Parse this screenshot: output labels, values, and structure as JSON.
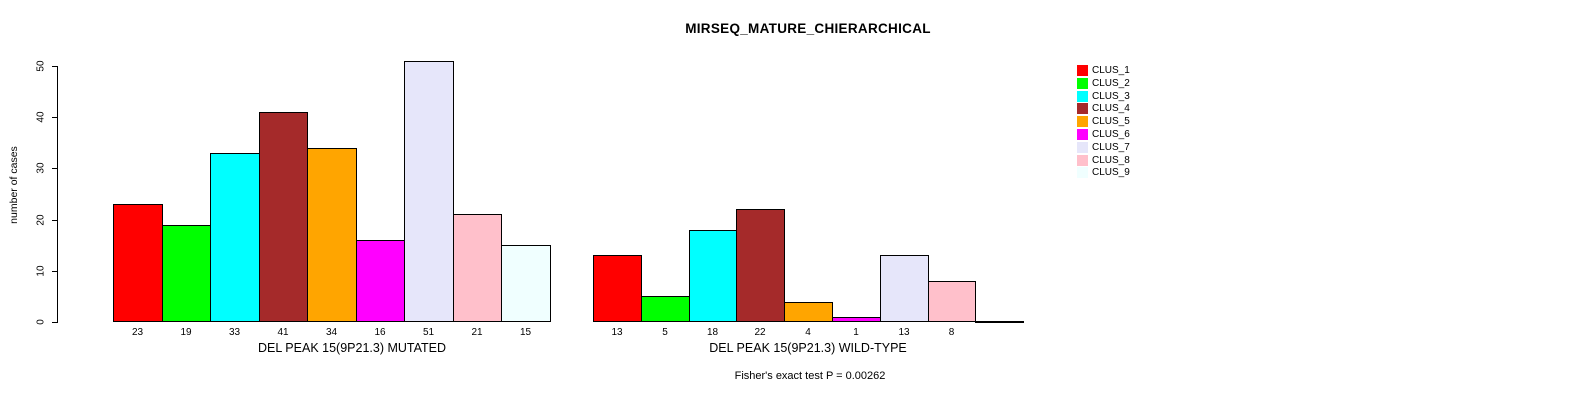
{
  "chart_data": {
    "type": "bar",
    "title": "MIRSEQ_MATURE_CHIERARCHICAL",
    "ylabel": "number of cases",
    "ylim": [
      0,
      50
    ],
    "yticks": [
      0,
      10,
      20,
      30,
      40,
      50
    ],
    "grid": false,
    "bar_spacing": 0,
    "annotation": "Fisher's exact test P = 0.00262",
    "series_colors": [
      "#FF0000",
      "#00FF00",
      "#00FFFF",
      "#A52A2A",
      "#FFA500",
      "#FF00FF",
      "#E6E6FA",
      "#FFC0CB",
      "#F0FFFF"
    ],
    "legend": {
      "position": "topright",
      "entries": [
        {
          "label": "CLUS_1",
          "color": "#FF0000"
        },
        {
          "label": "CLUS_2",
          "color": "#00FF00"
        },
        {
          "label": "CLUS_3",
          "color": "#00FFFF"
        },
        {
          "label": "CLUS_4",
          "color": "#A52A2A"
        },
        {
          "label": "CLUS_5",
          "color": "#FFA500"
        },
        {
          "label": "CLUS_6",
          "color": "#FF00FF"
        },
        {
          "label": "CLUS_7",
          "color": "#E6E6FA"
        },
        {
          "label": "CLUS_8",
          "color": "#FFC0CB"
        },
        {
          "label": "CLUS_9",
          "color": "#F0FFFF"
        }
      ]
    },
    "groups": [
      {
        "xlabel": "DEL PEAK 15(9P21.3) MUTATED",
        "values": [
          23,
          19,
          33,
          41,
          34,
          16,
          51,
          21,
          15
        ],
        "bar_labels": [
          "23",
          "19",
          "33",
          "41",
          "34",
          "16",
          "51",
          "21",
          "15"
        ]
      },
      {
        "xlabel": "DEL PEAK 15(9P21.3) WILD-TYPE",
        "values": [
          13,
          5,
          18,
          22,
          4,
          1,
          13,
          8,
          0
        ],
        "bar_labels": [
          "13",
          "5",
          "18",
          "22",
          "4",
          "1",
          "13",
          "8",
          ""
        ]
      }
    ]
  }
}
